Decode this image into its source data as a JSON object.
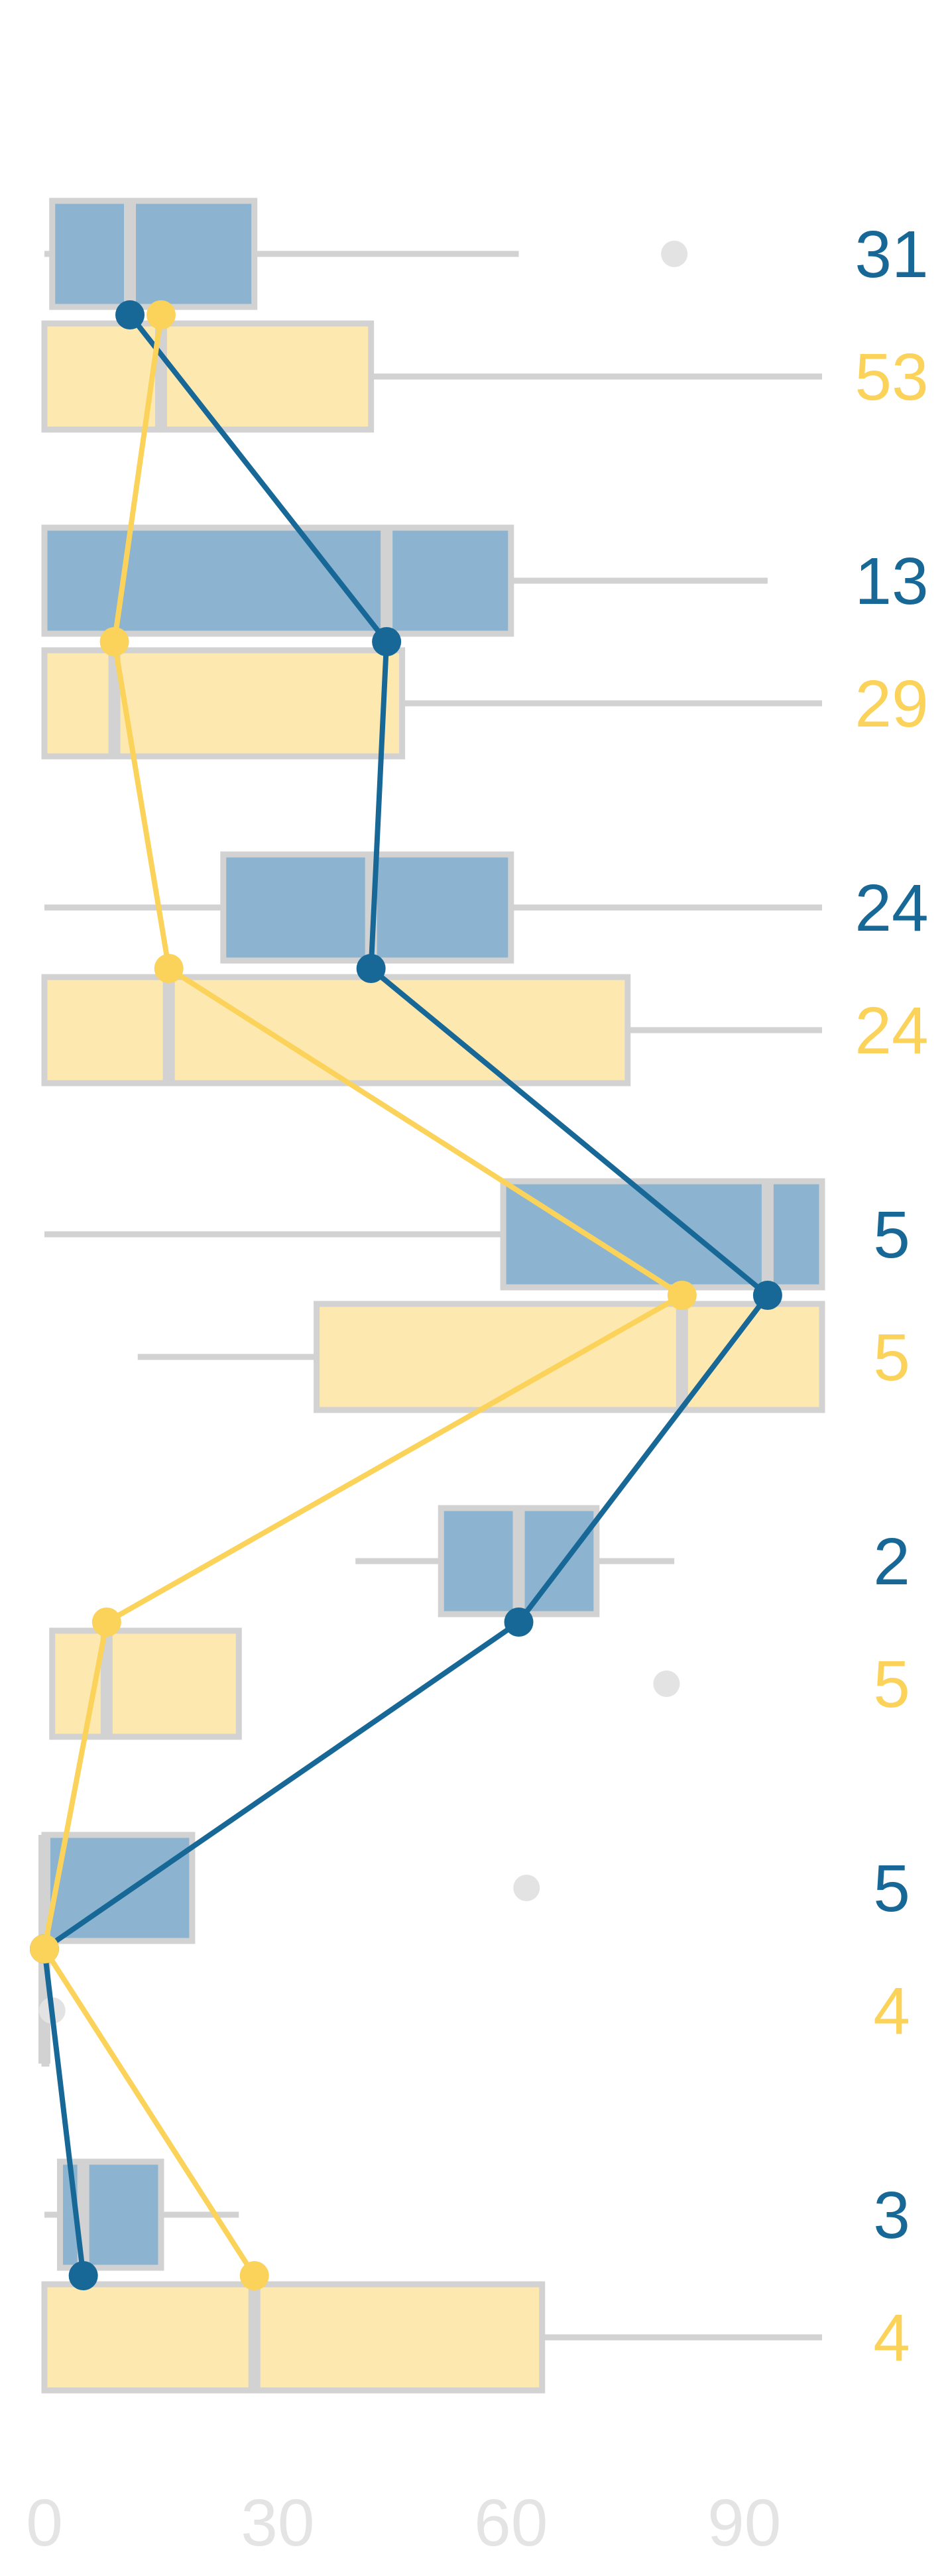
{
  "chart_data": {
    "type": "boxplot",
    "orientation": "horizontal",
    "title": "",
    "xlabel": "",
    "ylabel": "",
    "xlim": [
      0,
      100
    ],
    "xticks": [
      0,
      30,
      60,
      90
    ],
    "grid": false,
    "legend": "none",
    "colors": {
      "blue_box": "#8cb4d0",
      "blue_line": "#176896",
      "yellow_box": "#fde8b0",
      "yellow_line": "#fbd35a",
      "box_edge": "#d2d2d2",
      "whisker": "#d2d2d2",
      "outlier": "#e3e3e3",
      "tick": "#e4e4e4"
    },
    "series": [
      {
        "color": "#176896",
        "boxes": [
          {
            "min": 0,
            "q1": 1,
            "median": 11,
            "q3": 27,
            "max": 61,
            "outliers": [
              81
            ],
            "count": "31"
          },
          {
            "min": 0,
            "q1": 0,
            "median": 44,
            "q3": 60,
            "max": 93,
            "outliers": [],
            "count": "13"
          },
          {
            "min": 0,
            "q1": 23,
            "median": 42,
            "q3": 60,
            "max": 100,
            "outliers": [],
            "count": "24"
          },
          {
            "min": 0,
            "q1": 59,
            "median": 93,
            "q3": 100,
            "max": 100,
            "outliers": [],
            "count": "5"
          },
          {
            "min": 40,
            "q1": 51,
            "median": 61,
            "q3": 71,
            "max": 81,
            "outliers": [],
            "count": "2"
          },
          {
            "min": 0,
            "q1": 0,
            "median": 0,
            "q3": 19,
            "max": 19,
            "outliers": [
              62
            ],
            "count": "5"
          },
          {
            "min": 0,
            "q1": 2,
            "median": 5,
            "q3": 15,
            "max": 25,
            "outliers": [],
            "count": "3"
          }
        ]
      },
      {
        "color": "#fbd35a",
        "boxes": [
          {
            "min": 0,
            "q1": 0,
            "median": 15,
            "q3": 42,
            "max": 100,
            "outliers": [],
            "count": "53"
          },
          {
            "min": 0,
            "q1": 0,
            "median": 9,
            "q3": 46,
            "max": 100,
            "outliers": [],
            "count": "29"
          },
          {
            "min": 0,
            "q1": 0,
            "median": 16,
            "q3": 75,
            "max": 100,
            "outliers": [],
            "count": "24"
          },
          {
            "min": 12,
            "q1": 35,
            "median": 82,
            "q3": 100,
            "max": 100,
            "outliers": [],
            "count": "5"
          },
          {
            "min": 1,
            "q1": 1,
            "median": 8,
            "q3": 25,
            "max": 25,
            "outliers": [
              80
            ],
            "count": "5"
          },
          {
            "min": 0,
            "q1": 0,
            "median": 0,
            "q3": 0,
            "max": 0,
            "outliers": [
              1
            ],
            "count": "4"
          },
          {
            "min": 0,
            "q1": 0,
            "median": 27,
            "q3": 64,
            "max": 100,
            "outliers": [],
            "count": "4"
          }
        ]
      }
    ]
  }
}
